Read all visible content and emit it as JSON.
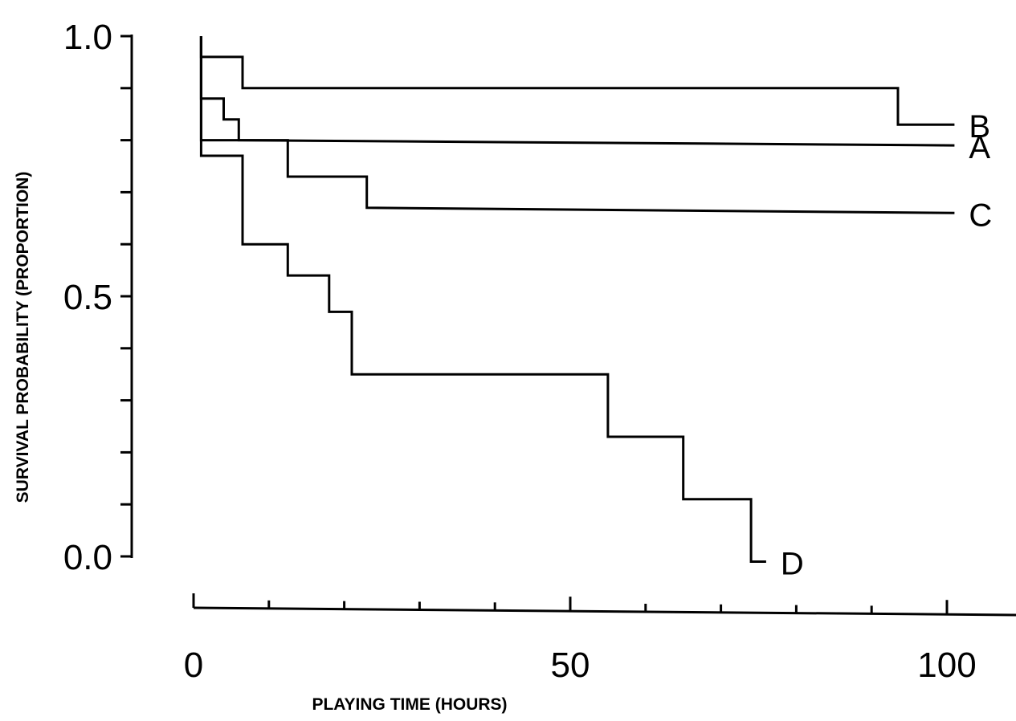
{
  "chart_data": {
    "type": "line",
    "step": true,
    "xlabel": "PLAYING TIME (HOURS)",
    "ylabel": "SURVIVAL PROBABILITY (PROPORTION)",
    "xlim": [
      0,
      110
    ],
    "ylim": [
      0,
      1
    ],
    "x_ticks": [
      0,
      50,
      100
    ],
    "y_ticks": [
      "0.0",
      "0.5",
      "1.0"
    ],
    "grid": false,
    "series": [
      {
        "name": "B",
        "points": [
          [
            1,
            1.0
          ],
          [
            1,
            0.96
          ],
          [
            6.5,
            0.96
          ],
          [
            6.5,
            0.9
          ],
          [
            93.5,
            0.9
          ],
          [
            93.5,
            0.83
          ],
          [
            101,
            0.83
          ]
        ]
      },
      {
        "name": "A",
        "points": [
          [
            1,
            1.0
          ],
          [
            1,
            0.88
          ],
          [
            4,
            0.88
          ],
          [
            4,
            0.84
          ],
          [
            6,
            0.84
          ],
          [
            6,
            0.8
          ],
          [
            101,
            0.79
          ]
        ]
      },
      {
        "name": "C",
        "points": [
          [
            1,
            1.0
          ],
          [
            1,
            0.8
          ],
          [
            12.5,
            0.8
          ],
          [
            12.5,
            0.73
          ],
          [
            23,
            0.73
          ],
          [
            23,
            0.67
          ],
          [
            101,
            0.66
          ]
        ]
      },
      {
        "name": "D",
        "points": [
          [
            1,
            1.0
          ],
          [
            1,
            0.77
          ],
          [
            6.5,
            0.77
          ],
          [
            6.5,
            0.6
          ],
          [
            12.5,
            0.6
          ],
          [
            12.5,
            0.54
          ],
          [
            18,
            0.54
          ],
          [
            18,
            0.47
          ],
          [
            21,
            0.47
          ],
          [
            21,
            0.35
          ],
          [
            55,
            0.35
          ],
          [
            55,
            0.23
          ],
          [
            65,
            0.23
          ],
          [
            65,
            0.11
          ],
          [
            74,
            0.11
          ],
          [
            74,
            -0.01
          ],
          [
            76,
            -0.01
          ]
        ]
      }
    ]
  }
}
